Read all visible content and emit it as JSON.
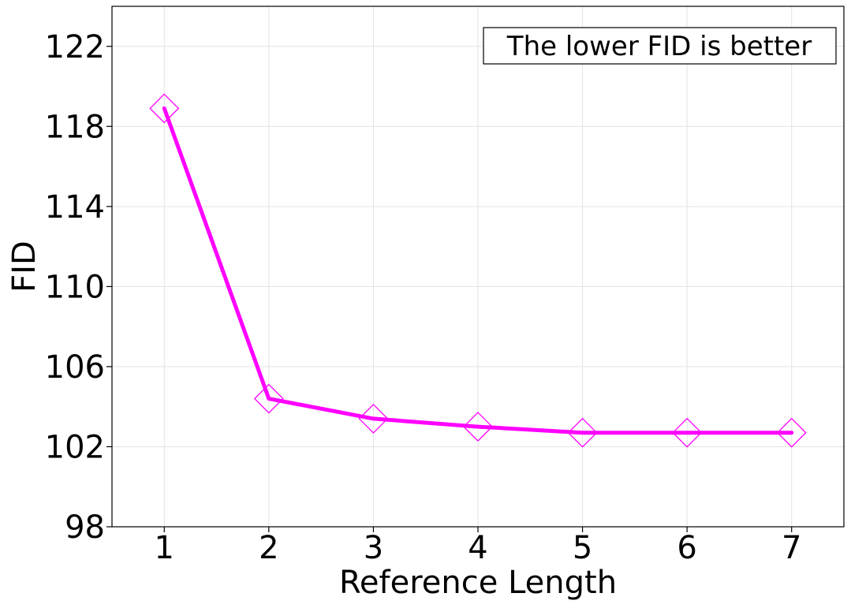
{
  "chart_data": {
    "type": "line",
    "title": "",
    "xlabel": "Reference Length",
    "ylabel": "FID",
    "x": [
      1,
      2,
      3,
      4,
      5,
      6,
      7
    ],
    "series": [
      {
        "values": [
          118.9,
          104.4,
          103.4,
          103.0,
          102.7,
          102.7,
          102.7
        ],
        "color": "#ff00ff",
        "marker": "diamond-open"
      }
    ],
    "xticks": [
      "1",
      "2",
      "3",
      "4",
      "5",
      "6",
      "7"
    ],
    "yticks": [
      "98",
      "102",
      "106",
      "110",
      "114",
      "118",
      "122"
    ],
    "xlim": [
      0.5,
      7.5
    ],
    "ylim": [
      98,
      124
    ],
    "grid": true,
    "annotation": "The lower FID is better",
    "annotation_position": "top-right"
  }
}
